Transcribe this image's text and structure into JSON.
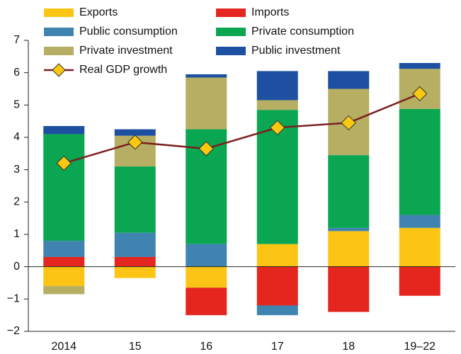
{
  "chart_data": {
    "type": "stacked_bar_line",
    "categories": [
      "2014",
      "15",
      "16",
      "17",
      "18",
      "19–22"
    ],
    "series": [
      {
        "name": "Exports",
        "color": "#fcc515",
        "values": [
          -0.6,
          -0.35,
          -0.65,
          0.7,
          1.1,
          1.2
        ]
      },
      {
        "name": "Imports",
        "color": "#e4261f",
        "values": [
          0.3,
          0.3,
          -0.85,
          -1.2,
          -1.4,
          -0.9
        ]
      },
      {
        "name": "Public consumption",
        "color": "#3f84b0",
        "values": [
          0.5,
          0.75,
          0.7,
          -0.3,
          0.1,
          0.4
        ]
      },
      {
        "name": "Private consumption",
        "color": "#0aa652",
        "values": [
          3.3,
          2.05,
          3.55,
          4.15,
          2.25,
          3.28
        ]
      },
      {
        "name": "Private investment",
        "color": "#b5ae63",
        "values": [
          -0.25,
          0.95,
          1.6,
          0.3,
          2.05,
          1.24
        ]
      },
      {
        "name": "Public investment",
        "color": "#1d50a0",
        "values": [
          0.25,
          0.2,
          0.1,
          0.9,
          0.55,
          0.18
        ]
      }
    ],
    "line": {
      "name": "Real GDP growth",
      "color": "#7b1f1f",
      "marker_color": "#f9c80f",
      "values": [
        3.2,
        3.85,
        3.65,
        4.3,
        4.45,
        5.35
      ]
    },
    "ylim": [
      -2,
      7
    ],
    "yticks": [
      {
        "value": -2,
        "label": "−2"
      },
      {
        "value": -1,
        "label": "−1"
      },
      0,
      1,
      2,
      3,
      4,
      5,
      6,
      7
    ]
  }
}
